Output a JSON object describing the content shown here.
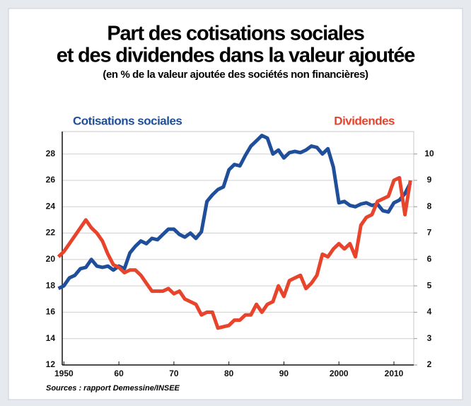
{
  "chart_data": {
    "type": "line",
    "title": [
      "Part des cotisations sociales",
      "et des dividendes dans la valeur ajoutée"
    ],
    "subtitle": "(en % de la valeur ajoutée des sociétés non financières)",
    "source": "Sources : rapport Demessine/INSEE",
    "x": [
      1949,
      1950,
      1951,
      1952,
      1953,
      1954,
      1955,
      1956,
      1957,
      1958,
      1959,
      1960,
      1961,
      1962,
      1963,
      1964,
      1965,
      1966,
      1967,
      1968,
      1969,
      1970,
      1971,
      1972,
      1973,
      1974,
      1975,
      1976,
      1977,
      1978,
      1979,
      1980,
      1981,
      1982,
      1983,
      1984,
      1985,
      1986,
      1987,
      1988,
      1989,
      1990,
      1991,
      1992,
      1993,
      1994,
      1995,
      1996,
      1997,
      1998,
      1999,
      2000,
      2001,
      2002,
      2003,
      2004,
      2005,
      2006,
      2007,
      2008,
      2009,
      2010,
      2011,
      2012,
      2013
    ],
    "series": [
      {
        "name": "Cotisations sociales",
        "color": "#1f4e9a",
        "axis": "y",
        "values": [
          17.8,
          18.0,
          18.6,
          18.8,
          19.3,
          19.4,
          20.0,
          19.5,
          19.4,
          19.5,
          19.2,
          19.5,
          19.3,
          20.5,
          21.0,
          21.4,
          21.2,
          21.6,
          21.5,
          21.9,
          22.3,
          22.3,
          21.9,
          21.7,
          22.0,
          21.6,
          22.1,
          24.4,
          24.9,
          25.3,
          25.5,
          26.8,
          27.2,
          27.1,
          27.9,
          28.6,
          29.0,
          29.4,
          29.2,
          28.0,
          28.3,
          27.7,
          28.1,
          28.2,
          28.1,
          28.3,
          28.6,
          28.5,
          28.0,
          28.4,
          27.0,
          24.3,
          24.4,
          24.1,
          24.0,
          24.2,
          24.3,
          24.1,
          24.2,
          23.7,
          23.6,
          24.3,
          24.5,
          25.0,
          25.8
        ]
      },
      {
        "name": "Dividendes",
        "color": "#e8432b",
        "axis": "y2",
        "values": [
          6.1,
          6.3,
          6.6,
          6.9,
          7.2,
          7.5,
          7.2,
          7.0,
          6.7,
          6.2,
          5.8,
          5.7,
          5.5,
          5.6,
          5.6,
          5.4,
          5.1,
          4.8,
          4.8,
          4.8,
          4.9,
          4.7,
          4.8,
          4.5,
          4.4,
          4.3,
          3.9,
          4.0,
          4.0,
          3.4,
          3.45,
          3.5,
          3.7,
          3.7,
          3.9,
          3.9,
          4.3,
          4.0,
          4.3,
          4.4,
          5.0,
          4.6,
          5.2,
          5.3,
          5.4,
          4.9,
          5.1,
          5.4,
          6.2,
          6.1,
          6.4,
          6.6,
          6.4,
          6.6,
          6.1,
          7.3,
          7.6,
          7.7,
          8.2,
          8.3,
          8.4,
          9.0,
          9.1,
          7.7,
          9.0
        ]
      }
    ],
    "xlim": [
      1949.7,
      2013.6
    ],
    "xticks": [
      1950,
      {
        "value": 1960,
        "label": "60"
      },
      {
        "value": 1970,
        "label": "70"
      },
      {
        "value": 1980,
        "label": "80"
      },
      {
        "value": 1990,
        "label": "90"
      },
      2000,
      2010
    ],
    "ylim": [
      12,
      29.7
    ],
    "yticks": [
      12,
      14,
      16,
      18,
      20,
      22,
      24,
      26,
      28
    ],
    "y2lim": [
      2,
      10.85
    ],
    "y2ticks": [
      2,
      3,
      4,
      5,
      6,
      7,
      8,
      9,
      10
    ],
    "grid": true
  }
}
